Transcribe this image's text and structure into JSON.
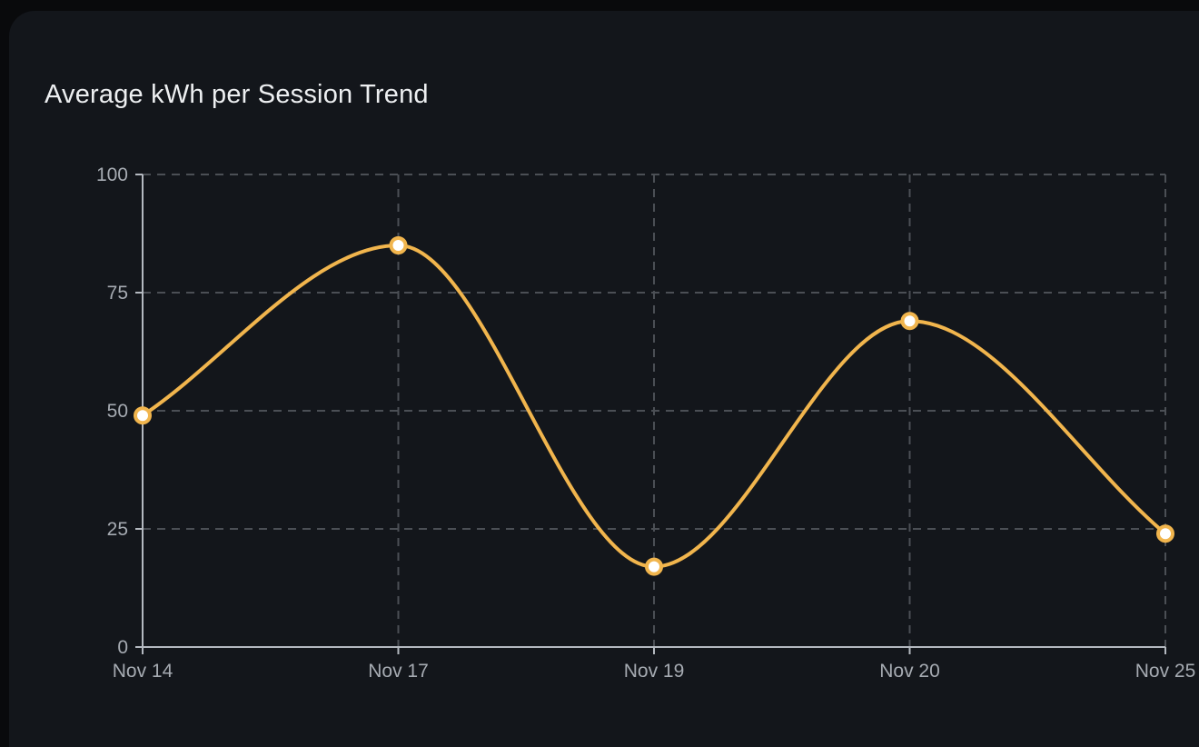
{
  "page": {
    "background": "#090a0c",
    "card_background": "#13161b",
    "title_color": "#edeff1"
  },
  "header": {
    "title": "Average kWh per Session Trend"
  },
  "chart_data": {
    "type": "line",
    "title": "Average kWh per Session Trend",
    "categories": [
      "Nov 14",
      "Nov 17",
      "Nov 19",
      "Nov 20",
      "Nov 25"
    ],
    "series": [
      {
        "name": "Average kWh per Session",
        "values": [
          49,
          85,
          17,
          69,
          24
        ]
      }
    ],
    "xlabel": "",
    "ylabel": "",
    "ylim": [
      0,
      100
    ],
    "yticks": [
      0,
      25,
      50,
      75,
      100
    ],
    "grid": "dashed",
    "legend_position": "none",
    "curve": "monotone",
    "colors": {
      "line": "#f1b54d",
      "point_fill": "#ffffff",
      "axis": "#b4b9c0",
      "tick_label": "#a6abb2",
      "grid": "#4b4f55"
    }
  }
}
